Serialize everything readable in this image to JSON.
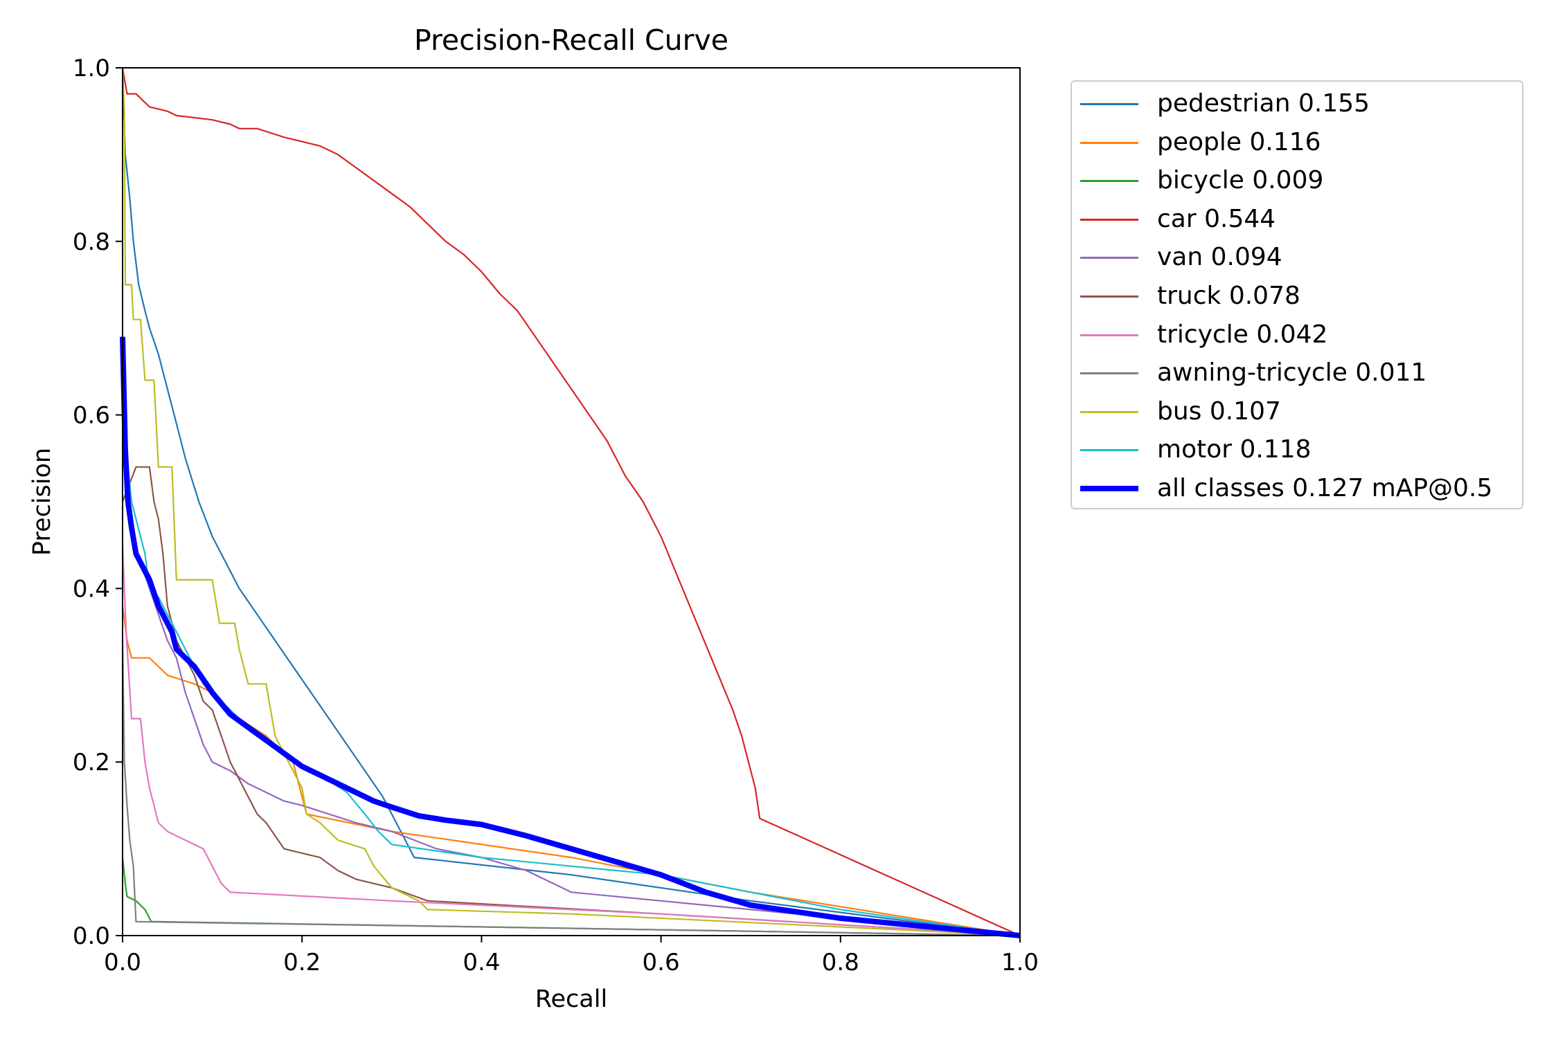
{
  "chart_data": {
    "type": "line",
    "title": "Precision-Recall Curve",
    "xlabel": "Recall",
    "ylabel": "Precision",
    "xlim": [
      0,
      1
    ],
    "ylim": [
      0,
      1
    ],
    "xticks": [
      "0.0",
      "0.2",
      "0.4",
      "0.6",
      "0.8",
      "1.0"
    ],
    "yticks": [
      "0.0",
      "0.2",
      "0.4",
      "0.6",
      "0.8",
      "1.0"
    ],
    "grid": false,
    "legend_position": "outside-right",
    "series": [
      {
        "name": "pedestrian 0.155",
        "color": "#1f77b4",
        "width": "thin",
        "points": [
          [
            0,
            1.0
          ],
          [
            0.003,
            0.9
          ],
          [
            0.008,
            0.85
          ],
          [
            0.012,
            0.8
          ],
          [
            0.018,
            0.75
          ],
          [
            0.025,
            0.72
          ],
          [
            0.03,
            0.7
          ],
          [
            0.04,
            0.67
          ],
          [
            0.05,
            0.63
          ],
          [
            0.06,
            0.59
          ],
          [
            0.07,
            0.55
          ],
          [
            0.085,
            0.5
          ],
          [
            0.1,
            0.46
          ],
          [
            0.115,
            0.43
          ],
          [
            0.13,
            0.4
          ],
          [
            0.15,
            0.37
          ],
          [
            0.17,
            0.34
          ],
          [
            0.19,
            0.31
          ],
          [
            0.21,
            0.28
          ],
          [
            0.23,
            0.25
          ],
          [
            0.25,
            0.22
          ],
          [
            0.27,
            0.19
          ],
          [
            0.29,
            0.16
          ],
          [
            0.31,
            0.12
          ],
          [
            0.325,
            0.09
          ],
          [
            0.5,
            0.07
          ],
          [
            0.7,
            0.04
          ],
          [
            1.0,
            0.0
          ]
        ]
      },
      {
        "name": "people 0.116",
        "color": "#ff7f0e",
        "width": "thin",
        "points": [
          [
            0,
            0.38
          ],
          [
            0.005,
            0.34
          ],
          [
            0.01,
            0.32
          ],
          [
            0.03,
            0.32
          ],
          [
            0.05,
            0.3
          ],
          [
            0.08,
            0.29
          ],
          [
            0.1,
            0.28
          ],
          [
            0.13,
            0.25
          ],
          [
            0.16,
            0.23
          ],
          [
            0.19,
            0.2
          ],
          [
            0.205,
            0.14
          ],
          [
            0.3,
            0.12
          ],
          [
            0.5,
            0.09
          ],
          [
            0.7,
            0.05
          ],
          [
            1.0,
            0.0
          ]
        ]
      },
      {
        "name": "bicycle 0.009",
        "color": "#2ca02c",
        "width": "thin",
        "points": [
          [
            0,
            0.09
          ],
          [
            0.003,
            0.06
          ],
          [
            0.005,
            0.045
          ],
          [
            0.015,
            0.04
          ],
          [
            0.025,
            0.03
          ],
          [
            0.03,
            0.02
          ],
          [
            0.032,
            0.016
          ],
          [
            0.04,
            0.016
          ],
          [
            1.0,
            0.0
          ]
        ]
      },
      {
        "name": "car 0.544",
        "color": "#d62728",
        "width": "thin",
        "points": [
          [
            0,
            1.0
          ],
          [
            0.005,
            0.97
          ],
          [
            0.015,
            0.97
          ],
          [
            0.03,
            0.955
          ],
          [
            0.05,
            0.95
          ],
          [
            0.06,
            0.945
          ],
          [
            0.1,
            0.94
          ],
          [
            0.12,
            0.935
          ],
          [
            0.13,
            0.93
          ],
          [
            0.15,
            0.93
          ],
          [
            0.18,
            0.92
          ],
          [
            0.2,
            0.915
          ],
          [
            0.22,
            0.91
          ],
          [
            0.24,
            0.9
          ],
          [
            0.26,
            0.885
          ],
          [
            0.28,
            0.87
          ],
          [
            0.3,
            0.855
          ],
          [
            0.32,
            0.84
          ],
          [
            0.34,
            0.82
          ],
          [
            0.36,
            0.8
          ],
          [
            0.38,
            0.785
          ],
          [
            0.4,
            0.765
          ],
          [
            0.42,
            0.74
          ],
          [
            0.44,
            0.72
          ],
          [
            0.46,
            0.69
          ],
          [
            0.48,
            0.66
          ],
          [
            0.5,
            0.63
          ],
          [
            0.52,
            0.6
          ],
          [
            0.54,
            0.57
          ],
          [
            0.56,
            0.53
          ],
          [
            0.58,
            0.5
          ],
          [
            0.6,
            0.46
          ],
          [
            0.62,
            0.41
          ],
          [
            0.64,
            0.36
          ],
          [
            0.66,
            0.31
          ],
          [
            0.68,
            0.26
          ],
          [
            0.69,
            0.23
          ],
          [
            0.7,
            0.19
          ],
          [
            0.705,
            0.17
          ],
          [
            0.71,
            0.135
          ],
          [
            1.0,
            0.0
          ]
        ]
      },
      {
        "name": "van 0.094",
        "color": "#9467bd",
        "width": "thin",
        "points": [
          [
            0,
            0.65
          ],
          [
            0.005,
            0.52
          ],
          [
            0.01,
            0.47
          ],
          [
            0.02,
            0.43
          ],
          [
            0.03,
            0.4
          ],
          [
            0.04,
            0.37
          ],
          [
            0.05,
            0.34
          ],
          [
            0.06,
            0.32
          ],
          [
            0.07,
            0.28
          ],
          [
            0.08,
            0.25
          ],
          [
            0.09,
            0.22
          ],
          [
            0.1,
            0.2
          ],
          [
            0.12,
            0.19
          ],
          [
            0.14,
            0.175
          ],
          [
            0.16,
            0.165
          ],
          [
            0.18,
            0.155
          ],
          [
            0.2,
            0.15
          ],
          [
            0.23,
            0.14
          ],
          [
            0.26,
            0.13
          ],
          [
            0.3,
            0.12
          ],
          [
            0.35,
            0.1
          ],
          [
            0.4,
            0.09
          ],
          [
            0.45,
            0.075
          ],
          [
            0.5,
            0.05
          ],
          [
            0.6,
            0.04
          ],
          [
            0.8,
            0.02
          ],
          [
            1.0,
            0.0
          ]
        ]
      },
      {
        "name": "truck 0.078",
        "color": "#8c564b",
        "width": "thin",
        "points": [
          [
            0,
            0.5
          ],
          [
            0.015,
            0.54
          ],
          [
            0.03,
            0.54
          ],
          [
            0.035,
            0.5
          ],
          [
            0.04,
            0.48
          ],
          [
            0.045,
            0.44
          ],
          [
            0.05,
            0.38
          ],
          [
            0.06,
            0.34
          ],
          [
            0.07,
            0.32
          ],
          [
            0.08,
            0.3
          ],
          [
            0.09,
            0.27
          ],
          [
            0.1,
            0.26
          ],
          [
            0.11,
            0.23
          ],
          [
            0.12,
            0.2
          ],
          [
            0.13,
            0.18
          ],
          [
            0.14,
            0.16
          ],
          [
            0.15,
            0.14
          ],
          [
            0.16,
            0.13
          ],
          [
            0.17,
            0.115
          ],
          [
            0.18,
            0.1
          ],
          [
            0.2,
            0.095
          ],
          [
            0.22,
            0.09
          ],
          [
            0.24,
            0.075
          ],
          [
            0.26,
            0.065
          ],
          [
            0.28,
            0.06
          ],
          [
            0.3,
            0.055
          ],
          [
            0.34,
            0.04
          ],
          [
            0.6,
            0.025
          ],
          [
            1.0,
            0.0
          ]
        ]
      },
      {
        "name": "tricycle 0.042",
        "color": "#e377c2",
        "width": "thin",
        "points": [
          [
            0,
            0.45
          ],
          [
            0.004,
            0.35
          ],
          [
            0.01,
            0.25
          ],
          [
            0.02,
            0.25
          ],
          [
            0.025,
            0.2
          ],
          [
            0.03,
            0.17
          ],
          [
            0.035,
            0.15
          ],
          [
            0.04,
            0.13
          ],
          [
            0.05,
            0.12
          ],
          [
            0.07,
            0.11
          ],
          [
            0.09,
            0.1
          ],
          [
            0.1,
            0.08
          ],
          [
            0.11,
            0.06
          ],
          [
            0.12,
            0.05
          ],
          [
            0.3,
            0.04
          ],
          [
            0.6,
            0.025
          ],
          [
            1.0,
            0.0
          ]
        ]
      },
      {
        "name": "awning-tricycle 0.011",
        "color": "#7f7f7f",
        "width": "thin",
        "points": [
          [
            0,
            0.34
          ],
          [
            0.002,
            0.2
          ],
          [
            0.005,
            0.15
          ],
          [
            0.008,
            0.11
          ],
          [
            0.012,
            0.08
          ],
          [
            0.015,
            0.016
          ],
          [
            0.4,
            0.01
          ],
          [
            1.0,
            0.0
          ]
        ]
      },
      {
        "name": "bus 0.107",
        "color": "#bcbd22",
        "width": "thin",
        "points": [
          [
            0,
            1.0
          ],
          [
            0.002,
            0.95
          ],
          [
            0.003,
            0.75
          ],
          [
            0.01,
            0.75
          ],
          [
            0.012,
            0.71
          ],
          [
            0.02,
            0.71
          ],
          [
            0.025,
            0.64
          ],
          [
            0.035,
            0.64
          ],
          [
            0.04,
            0.54
          ],
          [
            0.055,
            0.54
          ],
          [
            0.06,
            0.41
          ],
          [
            0.1,
            0.41
          ],
          [
            0.108,
            0.36
          ],
          [
            0.125,
            0.36
          ],
          [
            0.13,
            0.33
          ],
          [
            0.14,
            0.29
          ],
          [
            0.16,
            0.29
          ],
          [
            0.165,
            0.26
          ],
          [
            0.17,
            0.23
          ],
          [
            0.18,
            0.21
          ],
          [
            0.19,
            0.19
          ],
          [
            0.2,
            0.17
          ],
          [
            0.205,
            0.14
          ],
          [
            0.22,
            0.13
          ],
          [
            0.24,
            0.11
          ],
          [
            0.27,
            0.1
          ],
          [
            0.28,
            0.08
          ],
          [
            0.3,
            0.055
          ],
          [
            0.33,
            0.04
          ],
          [
            0.34,
            0.03
          ],
          [
            0.5,
            0.025
          ],
          [
            0.7,
            0.015
          ],
          [
            1.0,
            0.0
          ]
        ]
      },
      {
        "name": "motor 0.118",
        "color": "#17becf",
        "width": "thin",
        "points": [
          [
            0,
            0.6
          ],
          [
            0.005,
            0.55
          ],
          [
            0.01,
            0.5
          ],
          [
            0.02,
            0.46
          ],
          [
            0.025,
            0.44
          ],
          [
            0.03,
            0.4
          ],
          [
            0.04,
            0.39
          ],
          [
            0.05,
            0.37
          ],
          [
            0.06,
            0.35
          ],
          [
            0.07,
            0.33
          ],
          [
            0.08,
            0.31
          ],
          [
            0.09,
            0.29
          ],
          [
            0.1,
            0.28
          ],
          [
            0.12,
            0.26
          ],
          [
            0.15,
            0.23
          ],
          [
            0.18,
            0.21
          ],
          [
            0.2,
            0.195
          ],
          [
            0.22,
            0.185
          ],
          [
            0.25,
            0.165
          ],
          [
            0.27,
            0.14
          ],
          [
            0.285,
            0.12
          ],
          [
            0.3,
            0.105
          ],
          [
            0.4,
            0.09
          ],
          [
            0.5,
            0.08
          ],
          [
            0.6,
            0.07
          ],
          [
            0.8,
            0.03
          ],
          [
            1.0,
            0.0
          ]
        ]
      },
      {
        "name": "all classes 0.127 mAP@0.5",
        "color": "#0000ff",
        "width": "thick",
        "points": [
          [
            0,
            0.69
          ],
          [
            0.003,
            0.56
          ],
          [
            0.006,
            0.5
          ],
          [
            0.01,
            0.47
          ],
          [
            0.015,
            0.44
          ],
          [
            0.02,
            0.43
          ],
          [
            0.03,
            0.41
          ],
          [
            0.04,
            0.38
          ],
          [
            0.045,
            0.37
          ],
          [
            0.055,
            0.35
          ],
          [
            0.06,
            0.33
          ],
          [
            0.08,
            0.31
          ],
          [
            0.1,
            0.28
          ],
          [
            0.12,
            0.255
          ],
          [
            0.14,
            0.24
          ],
          [
            0.16,
            0.225
          ],
          [
            0.18,
            0.21
          ],
          [
            0.2,
            0.195
          ],
          [
            0.22,
            0.185
          ],
          [
            0.25,
            0.17
          ],
          [
            0.28,
            0.155
          ],
          [
            0.3,
            0.148
          ],
          [
            0.33,
            0.138
          ],
          [
            0.36,
            0.133
          ],
          [
            0.4,
            0.128
          ],
          [
            0.45,
            0.115
          ],
          [
            0.5,
            0.1
          ],
          [
            0.55,
            0.085
          ],
          [
            0.6,
            0.07
          ],
          [
            0.65,
            0.05
          ],
          [
            0.7,
            0.035
          ],
          [
            0.8,
            0.02
          ],
          [
            0.9,
            0.01
          ],
          [
            1.0,
            0.0
          ]
        ]
      }
    ]
  }
}
